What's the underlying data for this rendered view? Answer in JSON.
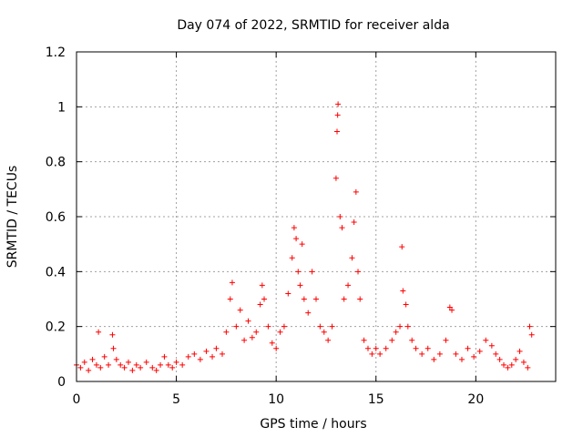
{
  "chart_data": {
    "type": "scatter",
    "title": "Day 074 of 2022, SRMTID for receiver alda",
    "xlabel": "GPS time / hours",
    "ylabel": "SRMTID / TECUs",
    "xlim": [
      0,
      24
    ],
    "ylim": [
      0,
      1.2
    ],
    "x_ticks": [
      "0",
      "5",
      "10",
      "15",
      "20"
    ],
    "y_ticks": [
      "0",
      "0.2",
      "0.4",
      "0.6",
      "0.8",
      "1",
      "1.2"
    ],
    "grid": true,
    "marker": "+",
    "series": [
      {
        "name": "SRMTID",
        "color": "#ff0000",
        "points": [
          [
            0.0,
            0.06
          ],
          [
            0.2,
            0.05
          ],
          [
            0.4,
            0.07
          ],
          [
            0.6,
            0.04
          ],
          [
            0.8,
            0.08
          ],
          [
            1.0,
            0.06
          ],
          [
            1.1,
            0.18
          ],
          [
            1.2,
            0.05
          ],
          [
            1.4,
            0.09
          ],
          [
            1.6,
            0.06
          ],
          [
            1.8,
            0.17
          ],
          [
            1.85,
            0.12
          ],
          [
            2.0,
            0.08
          ],
          [
            2.2,
            0.06
          ],
          [
            2.4,
            0.05
          ],
          [
            2.6,
            0.07
          ],
          [
            2.8,
            0.04
          ],
          [
            3.0,
            0.06
          ],
          [
            3.2,
            0.05
          ],
          [
            3.5,
            0.07
          ],
          [
            3.8,
            0.05
          ],
          [
            4.0,
            0.04
          ],
          [
            4.2,
            0.06
          ],
          [
            4.4,
            0.09
          ],
          [
            4.6,
            0.06
          ],
          [
            4.8,
            0.05
          ],
          [
            5.0,
            0.07
          ],
          [
            5.3,
            0.06
          ],
          [
            5.6,
            0.09
          ],
          [
            5.9,
            0.1
          ],
          [
            6.2,
            0.08
          ],
          [
            6.5,
            0.11
          ],
          [
            6.8,
            0.09
          ],
          [
            7.0,
            0.12
          ],
          [
            7.3,
            0.1
          ],
          [
            7.5,
            0.18
          ],
          [
            7.7,
            0.3
          ],
          [
            7.8,
            0.36
          ],
          [
            8.0,
            0.2
          ],
          [
            8.2,
            0.26
          ],
          [
            8.4,
            0.15
          ],
          [
            8.6,
            0.22
          ],
          [
            8.8,
            0.16
          ],
          [
            9.0,
            0.18
          ],
          [
            9.2,
            0.28
          ],
          [
            9.3,
            0.35
          ],
          [
            9.4,
            0.3
          ],
          [
            9.6,
            0.2
          ],
          [
            9.8,
            0.14
          ],
          [
            10.0,
            0.12
          ],
          [
            10.2,
            0.18
          ],
          [
            10.4,
            0.2
          ],
          [
            10.6,
            0.32
          ],
          [
            10.8,
            0.45
          ],
          [
            10.9,
            0.56
          ],
          [
            11.0,
            0.52
          ],
          [
            11.1,
            0.4
          ],
          [
            11.2,
            0.35
          ],
          [
            11.3,
            0.5
          ],
          [
            11.4,
            0.3
          ],
          [
            11.6,
            0.25
          ],
          [
            11.8,
            0.4
          ],
          [
            12.0,
            0.3
          ],
          [
            12.2,
            0.2
          ],
          [
            12.4,
            0.18
          ],
          [
            12.6,
            0.15
          ],
          [
            12.8,
            0.2
          ],
          [
            13.0,
            0.74
          ],
          [
            13.05,
            0.91
          ],
          [
            13.08,
            0.97
          ],
          [
            13.1,
            1.01
          ],
          [
            13.2,
            0.6
          ],
          [
            13.3,
            0.56
          ],
          [
            13.4,
            0.3
          ],
          [
            13.6,
            0.35
          ],
          [
            13.8,
            0.45
          ],
          [
            13.9,
            0.58
          ],
          [
            14.0,
            0.69
          ],
          [
            14.1,
            0.4
          ],
          [
            14.2,
            0.3
          ],
          [
            14.4,
            0.15
          ],
          [
            14.6,
            0.12
          ],
          [
            14.8,
            0.1
          ],
          [
            15.0,
            0.12
          ],
          [
            15.2,
            0.1
          ],
          [
            15.5,
            0.12
          ],
          [
            15.8,
            0.15
          ],
          [
            16.0,
            0.18
          ],
          [
            16.2,
            0.2
          ],
          [
            16.3,
            0.49
          ],
          [
            16.35,
            0.33
          ],
          [
            16.5,
            0.28
          ],
          [
            16.6,
            0.2
          ],
          [
            16.8,
            0.15
          ],
          [
            17.0,
            0.12
          ],
          [
            17.3,
            0.1
          ],
          [
            17.6,
            0.12
          ],
          [
            17.9,
            0.08
          ],
          [
            18.2,
            0.1
          ],
          [
            18.5,
            0.15
          ],
          [
            18.7,
            0.27
          ],
          [
            18.8,
            0.26
          ],
          [
            19.0,
            0.1
          ],
          [
            19.3,
            0.08
          ],
          [
            19.6,
            0.12
          ],
          [
            19.9,
            0.09
          ],
          [
            20.2,
            0.11
          ],
          [
            20.5,
            0.15
          ],
          [
            20.8,
            0.13
          ],
          [
            21.0,
            0.1
          ],
          [
            21.2,
            0.08
          ],
          [
            21.4,
            0.06
          ],
          [
            21.6,
            0.05
          ],
          [
            21.8,
            0.06
          ],
          [
            22.0,
            0.08
          ],
          [
            22.2,
            0.11
          ],
          [
            22.4,
            0.07
          ],
          [
            22.6,
            0.05
          ],
          [
            22.7,
            0.2
          ],
          [
            22.8,
            0.17
          ]
        ]
      }
    ]
  }
}
